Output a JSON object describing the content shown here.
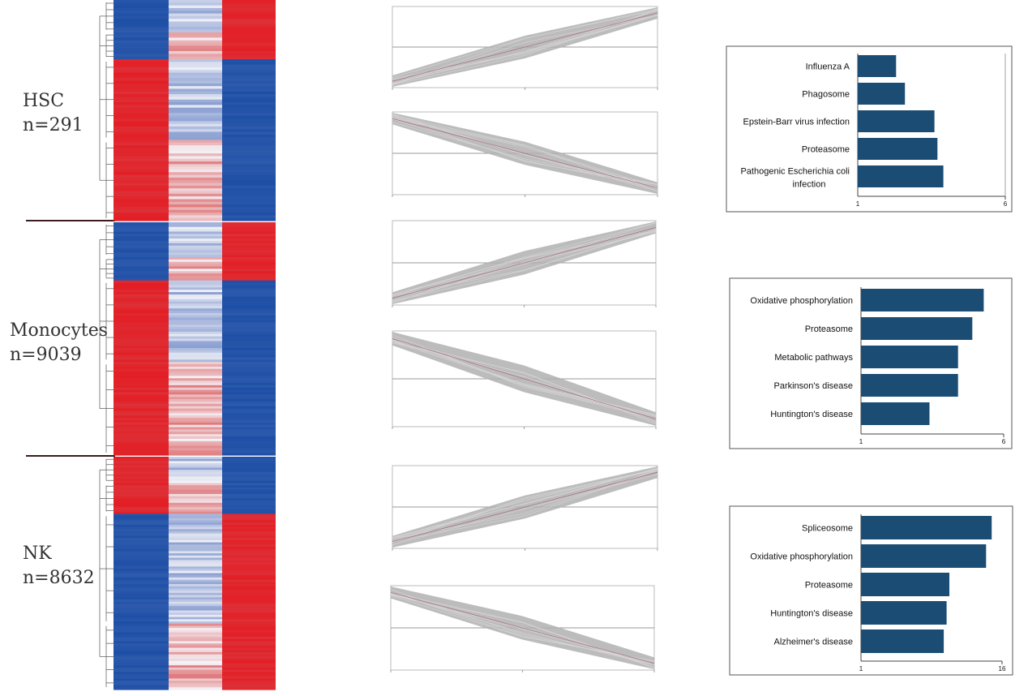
{
  "groups": [
    {
      "name": "HSC",
      "n": "n=291"
    },
    {
      "name": "Monocytes",
      "n": "n=9039"
    },
    {
      "name": "NK",
      "n": "n=8632"
    }
  ],
  "colors": {
    "red": "#e31e25",
    "blue": "#1d4fa6",
    "white": "#f4f4f8",
    "bar": "#1b4d74",
    "trend": "#b0b0b0"
  },
  "chart_data": [
    {
      "type": "bar",
      "group": "HSC",
      "categories": [
        "Influenza A",
        "Phagosome",
        "Epstein-Barr virus infection",
        "Proteasome",
        "Pathogenic Escherichia coli infection"
      ],
      "values": [
        2.3,
        2.6,
        3.6,
        3.7,
        3.9
      ],
      "xlim": [
        1,
        6
      ],
      "ticks": [
        "1",
        "6"
      ]
    },
    {
      "type": "bar",
      "group": "Monocytes",
      "categories": [
        "Oxidative phosphorylation",
        "Proteasome",
        "Metabolic pathways",
        "Parkinson's disease",
        "Huntington's disease"
      ],
      "values": [
        5.3,
        4.9,
        4.4,
        4.4,
        3.4
      ],
      "xlim": [
        1,
        6
      ],
      "ticks": [
        "1",
        "6"
      ]
    },
    {
      "type": "bar",
      "group": "NK",
      "categories": [
        "Spliceosome",
        "Oxidative phosphorylation",
        "Proteasome",
        "Huntington's disease",
        "Alzheimer's disease"
      ],
      "values": [
        14.9,
        14.3,
        10.4,
        10.1,
        9.8
      ],
      "xlim": [
        1,
        16
      ],
      "ticks": [
        "1",
        "16"
      ]
    },
    {
      "type": "line",
      "group": "HSC",
      "pattern": "up",
      "x": [
        1,
        2,
        3
      ],
      "y": [
        -1,
        0,
        1
      ]
    },
    {
      "type": "line",
      "group": "HSC",
      "pattern": "down",
      "x": [
        1,
        2,
        3
      ],
      "y": [
        1,
        0,
        -1
      ]
    },
    {
      "type": "line",
      "group": "Monocytes",
      "pattern": "up",
      "x": [
        1,
        2,
        3
      ],
      "y": [
        -1,
        0,
        1
      ]
    },
    {
      "type": "line",
      "group": "Monocytes",
      "pattern": "down",
      "x": [
        1,
        2,
        3
      ],
      "y": [
        1,
        0,
        -1
      ]
    },
    {
      "type": "line",
      "group": "NK",
      "pattern": "up",
      "x": [
        1,
        2,
        3
      ],
      "y": [
        -1,
        0,
        1
      ]
    },
    {
      "type": "line",
      "group": "NK",
      "pattern": "down",
      "x": [
        1,
        2,
        3
      ],
      "y": [
        1,
        0,
        -1
      ]
    },
    {
      "type": "heatmap",
      "group": "HSC",
      "columns": 3,
      "blocks": [
        {
          "rows": 12,
          "pattern": [
            "blue",
            "lightblue",
            "red"
          ]
        },
        {
          "rows": 10,
          "pattern": [
            "blue",
            "pink",
            "red"
          ]
        },
        {
          "rows": 30,
          "pattern": [
            "red",
            "lightblue",
            "blue"
          ]
        },
        {
          "rows": 30,
          "pattern": [
            "red",
            "pink",
            "blue"
          ]
        }
      ]
    },
    {
      "type": "heatmap",
      "group": "Monocytes",
      "columns": 3,
      "blocks": [
        {
          "rows": 15,
          "pattern": [
            "blue",
            "lightblue",
            "red"
          ]
        },
        {
          "rows": 10,
          "pattern": [
            "blue",
            "pink",
            "red"
          ]
        },
        {
          "rows": 35,
          "pattern": [
            "red",
            "lightblue",
            "blue"
          ]
        },
        {
          "rows": 40,
          "pattern": [
            "red",
            "pink",
            "blue"
          ]
        }
      ]
    },
    {
      "type": "heatmap",
      "group": "NK",
      "columns": 3,
      "blocks": [
        {
          "rows": 12,
          "pattern": [
            "red",
            "lightblue",
            "blue"
          ]
        },
        {
          "rows": 14,
          "pattern": [
            "red",
            "pink",
            "blue"
          ]
        },
        {
          "rows": 50,
          "pattern": [
            "blue",
            "lightblue",
            "red"
          ]
        },
        {
          "rows": 30,
          "pattern": [
            "blue",
            "pink",
            "red"
          ]
        }
      ]
    }
  ]
}
